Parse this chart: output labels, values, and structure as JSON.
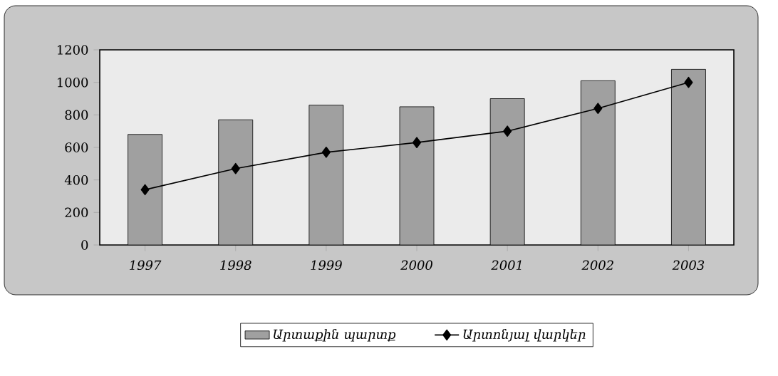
{
  "chart_data": {
    "type": "bar",
    "categories": [
      "1997",
      "1998",
      "1999",
      "2000",
      "2001",
      "2002",
      "2003"
    ],
    "series": [
      {
        "name": "Արտաքին պարտք",
        "type": "bar",
        "color": "#a0a0a0",
        "values": [
          680,
          770,
          860,
          850,
          900,
          1010,
          1080
        ]
      },
      {
        "name": "Արտոնյալ վարկեր",
        "type": "line",
        "color": "#000000",
        "marker": "diamond",
        "values": [
          340,
          470,
          570,
          630,
          700,
          840,
          1000
        ]
      }
    ],
    "ylim": [
      0,
      1200
    ],
    "yticks": [
      0,
      200,
      400,
      600,
      800,
      1000,
      1200
    ],
    "grid": false,
    "legend": "bottom"
  }
}
